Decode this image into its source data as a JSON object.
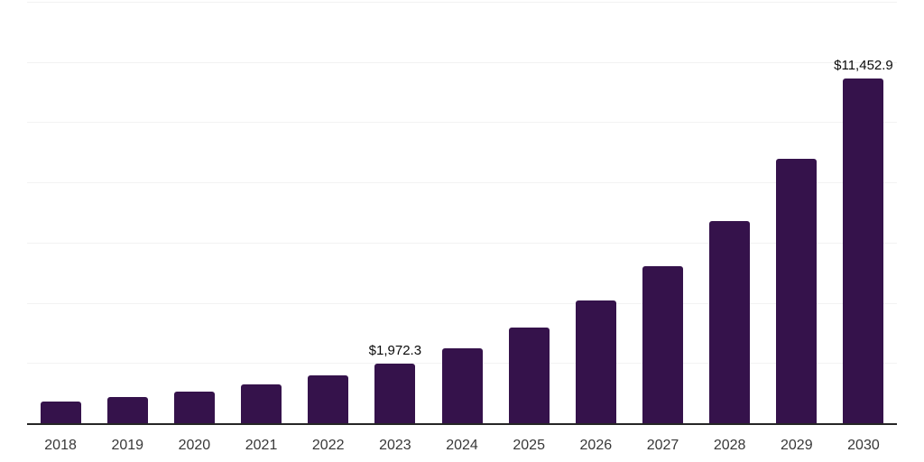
{
  "chart_data": {
    "type": "bar",
    "title": "",
    "xlabel": "",
    "ylabel": "",
    "categories": [
      "2018",
      "2019",
      "2020",
      "2021",
      "2022",
      "2023",
      "2024",
      "2025",
      "2026",
      "2027",
      "2028",
      "2029",
      "2030"
    ],
    "values": [
      710,
      870,
      1050,
      1290,
      1585,
      1972.3,
      2480,
      3170,
      4070,
      5230,
      6715,
      8790,
      11452.9
    ],
    "labeled_bars": [
      {
        "category": "2023",
        "label": "$1,972.3"
      },
      {
        "category": "2030",
        "label": "$11,452.9"
      }
    ],
    "ylim": [
      0,
      14000
    ],
    "gridline_interval": 2000,
    "grid": "horizontal",
    "legend_position": "none",
    "colors": {
      "bar": "#35124b",
      "axis_line": "#262626",
      "gridline": "#f2f2f2",
      "tick_label": "#383838",
      "value_label": "#0a0a0a",
      "background": "#ffffff"
    }
  }
}
